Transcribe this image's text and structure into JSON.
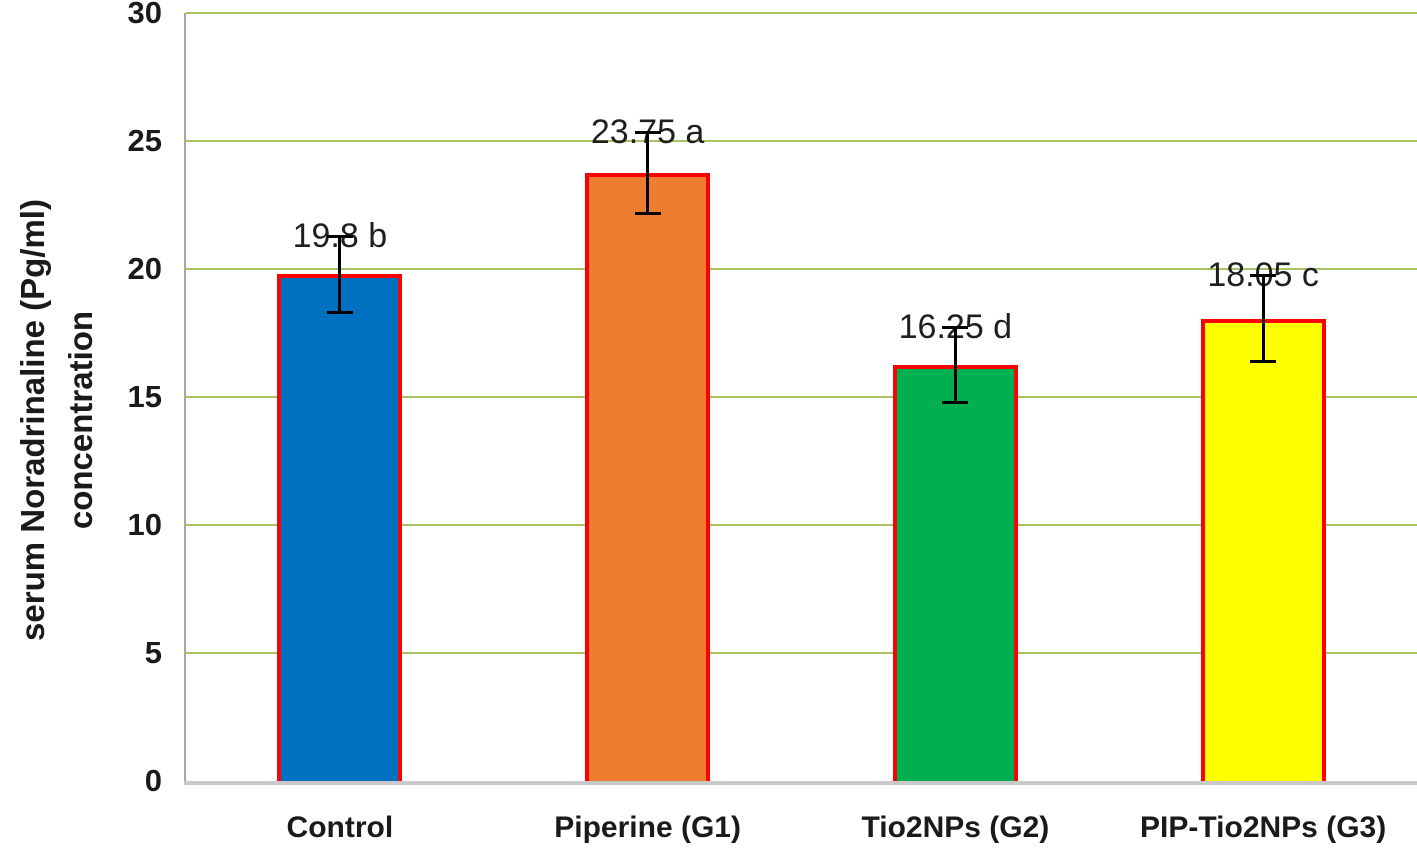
{
  "chart_data": {
    "type": "bar",
    "title": "",
    "categories": [
      "Control",
      "Piperine (G1)",
      "Tio2NPs (G2)",
      "PIP-Tio2NPs (G3)"
    ],
    "values": [
      19.8,
      23.75,
      16.25,
      18.05
    ],
    "bar_labels": [
      "19.8 b",
      "23.75 a",
      "16.25 d",
      "18.05 c"
    ],
    "errors": [
      1.5,
      1.6,
      1.5,
      1.7
    ],
    "bar_colors": [
      "#0070C0",
      "#ED7D31",
      "#00B050",
      "#FFFF00"
    ],
    "bar_border_color": "#FF0000",
    "ylabel_line1": "serum Noradrinaline (Pg/ml)",
    "ylabel_line2": "concentration",
    "xlabel": "",
    "ylim": [
      0,
      30
    ],
    "yticks": [
      0,
      5,
      10,
      15,
      20,
      25,
      30
    ],
    "grid": true,
    "legend_position": "none",
    "colors": {
      "gridline": "#A6C463",
      "axis_line": "#A6A6A6",
      "baseline": "#C9C9C9",
      "error_bar": "#000000"
    }
  }
}
